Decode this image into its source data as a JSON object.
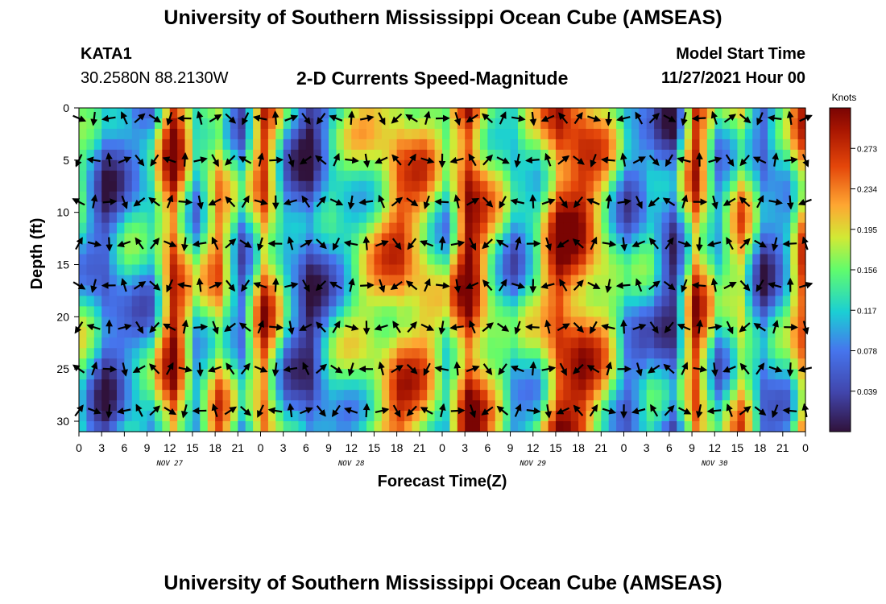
{
  "header": {
    "title": "University of Southern Mississippi Ocean Cube (AMSEAS)",
    "station": "KATA1",
    "latlon": "30.2580N  88.2130W",
    "subtitle": "2-D Currents Speed-Magnitude",
    "start_label": "Model Start Time",
    "start_time": "11/27/2021 Hour 00"
  },
  "footer": {
    "title_repeat": "University of Southern Mississippi Ocean Cube (AMSEAS)"
  },
  "chart_data": {
    "type": "heatmap",
    "title": "2-D Currents Speed-Magnitude",
    "xlabel": "Forecast Time(Z)",
    "ylabel": "Depth (ft)",
    "x_range_hours": [
      0,
      96
    ],
    "y_range_ft": [
      0,
      31
    ],
    "y_ticks": [
      "0",
      "5",
      "10",
      "15",
      "20",
      "25",
      "30"
    ],
    "x_tick_labels": [
      "0",
      "3",
      "6",
      "9",
      "12",
      "15",
      "18",
      "21",
      "0",
      "3",
      "6",
      "9",
      "12",
      "15",
      "18",
      "21",
      "0",
      "3",
      "6",
      "9",
      "12",
      "15",
      "18",
      "21",
      "0",
      "3",
      "6",
      "9",
      "12",
      "15",
      "18",
      "21",
      "0"
    ],
    "day_labels": [
      "NOV 27",
      "NOV 28",
      "NOV 29",
      "NOV 30"
    ],
    "colorbar": {
      "unit": "Knots",
      "ticks": [
        "0.039",
        "0.078",
        "0.117",
        "0.156",
        "0.195",
        "0.234",
        "0.273"
      ],
      "range": [
        0.0,
        0.312
      ]
    },
    "speed_by_hour_approx": [
      0.13,
      0.05,
      0.1,
      0.11,
      0.28,
      0.12,
      0.22,
      0.08,
      0.25,
      0.1,
      0.03,
      0.11,
      0.15,
      0.19,
      0.24,
      0.21,
      0.14,
      0.3,
      0.18,
      0.1,
      0.15,
      0.28,
      0.26,
      0.19,
      0.09,
      0.11,
      0.04,
      0.26,
      0.11,
      0.2,
      0.06,
      0.12,
      0.29
    ]
  }
}
